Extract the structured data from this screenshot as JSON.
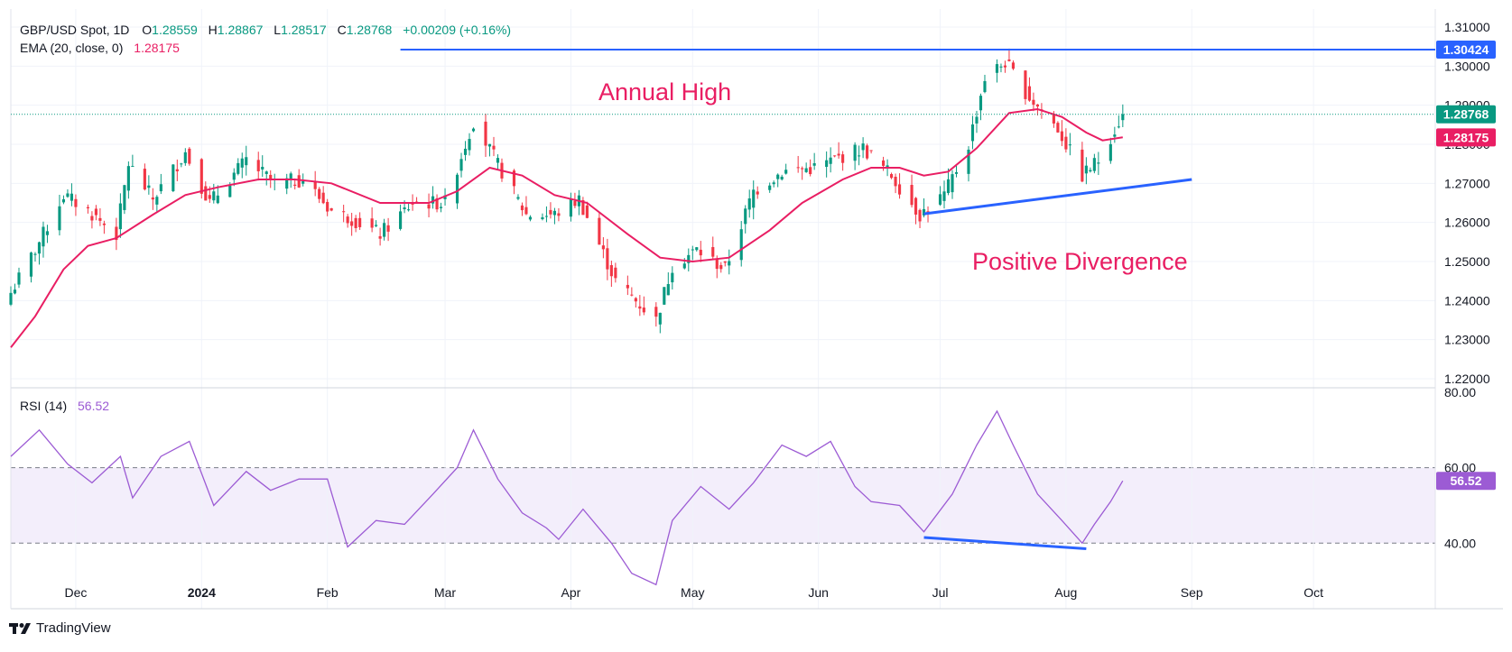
{
  "header": {
    "symbol": "GBP/USD Spot, 1D",
    "open_label": "O",
    "open": "1.28559",
    "high_label": "H",
    "high": "1.28867",
    "low_label": "L",
    "low": "1.28517",
    "close_label": "C",
    "close": "1.28768",
    "change": "+0.00209 (+0.16%)",
    "ema_label": "EMA (20, close, 0)",
    "ema_value": "1.28175",
    "rsi_label": "RSI (14)",
    "rsi_value": "56.52"
  },
  "annotations": {
    "annual_high": "Annual High",
    "positive_divergence": "Positive Divergence"
  },
  "price_badges": {
    "resistance": "1.30424",
    "last": "1.28768",
    "ema": "1.28175",
    "rsi": "56.52"
  },
  "colors": {
    "up": "#089981",
    "down": "#f23645",
    "ema": "#e91e63",
    "rsi": "#9c5bd4",
    "trendline": "#2962ff",
    "annotation": "#e91e63",
    "rsi_band": "#f3eefb"
  },
  "footer": {
    "brand": "TradingView"
  },
  "chart_data": [
    {
      "type": "candlestick",
      "series_name": "GBP/USD Spot, 1D",
      "x_tick_labels": [
        "Dec",
        "2024",
        "Feb",
        "Mar",
        "Apr",
        "May",
        "Jun",
        "Jul",
        "Aug",
        "Sep",
        "Oct"
      ],
      "x_tick_dates": [
        "2023-12-01",
        "2024-01-01",
        "2024-02-01",
        "2024-03-01",
        "2024-04-01",
        "2024-05-01",
        "2024-06-01",
        "2024-07-01",
        "2024-08-01",
        "2024-09-01",
        "2024-10-01"
      ],
      "y_ticks": [
        "1.22000",
        "1.23000",
        "1.24000",
        "1.25000",
        "1.26000",
        "1.27000",
        "1.28000",
        "1.29000",
        "1.30000",
        "1.31000"
      ],
      "ylim": [
        1.22,
        1.31
      ],
      "xlim": [
        "2023-11-15",
        "2024-10-31"
      ],
      "close_path": [
        [
          "2023-11-15",
          1.242
        ],
        [
          "2023-11-21",
          1.253
        ],
        [
          "2023-11-28",
          1.267
        ],
        [
          "2023-12-04",
          1.263
        ],
        [
          "2023-12-11",
          1.257
        ],
        [
          "2023-12-14",
          1.275
        ],
        [
          "2023-12-20",
          1.266
        ],
        [
          "2023-12-28",
          1.278
        ],
        [
          "2024-01-03",
          1.265
        ],
        [
          "2024-01-12",
          1.276
        ],
        [
          "2024-01-19",
          1.27
        ],
        [
          "2024-01-26",
          1.271
        ],
        [
          "2024-02-02",
          1.263
        ],
        [
          "2024-02-07",
          1.261
        ],
        [
          "2024-02-14",
          1.257
        ],
        [
          "2024-02-22",
          1.265
        ],
        [
          "2024-03-01",
          1.265
        ],
        [
          "2024-03-08",
          1.286
        ],
        [
          "2024-03-15",
          1.273
        ],
        [
          "2024-03-21",
          1.262
        ],
        [
          "2024-03-28",
          1.262
        ],
        [
          "2024-04-03",
          1.266
        ],
        [
          "2024-04-12",
          1.245
        ],
        [
          "2024-04-22",
          1.235
        ],
        [
          "2024-04-26",
          1.249
        ],
        [
          "2024-05-02",
          1.253
        ],
        [
          "2024-05-09",
          1.248
        ],
        [
          "2024-05-16",
          1.268
        ],
        [
          "2024-05-23",
          1.273
        ],
        [
          "2024-05-31",
          1.274
        ],
        [
          "2024-06-07",
          1.277
        ],
        [
          "2024-06-12",
          1.279
        ],
        [
          "2024-06-19",
          1.272
        ],
        [
          "2024-06-26",
          1.262
        ],
        [
          "2024-07-02",
          1.267
        ],
        [
          "2024-07-08",
          1.28
        ],
        [
          "2024-07-12",
          1.297
        ],
        [
          "2024-07-17",
          1.301
        ],
        [
          "2024-07-23",
          1.292
        ],
        [
          "2024-07-30",
          1.284
        ],
        [
          "2024-08-05",
          1.272
        ],
        [
          "2024-08-09",
          1.276
        ],
        [
          "2024-08-12",
          1.282
        ],
        [
          "2024-08-15",
          1.2877
        ]
      ],
      "ema_20": [
        [
          "2023-11-15",
          1.228
        ],
        [
          "2023-11-21",
          1.236
        ],
        [
          "2023-11-28",
          1.248
        ],
        [
          "2023-12-04",
          1.254
        ],
        [
          "2023-12-11",
          1.256
        ],
        [
          "2023-12-20",
          1.262
        ],
        [
          "2023-12-28",
          1.267
        ],
        [
          "2024-01-05",
          1.269
        ],
        [
          "2024-01-15",
          1.271
        ],
        [
          "2024-01-24",
          1.271
        ],
        [
          "2024-02-02",
          1.27
        ],
        [
          "2024-02-14",
          1.265
        ],
        [
          "2024-02-26",
          1.265
        ],
        [
          "2024-03-04",
          1.268
        ],
        [
          "2024-03-12",
          1.274
        ],
        [
          "2024-03-20",
          1.272
        ],
        [
          "2024-03-28",
          1.267
        ],
        [
          "2024-04-05",
          1.265
        ],
        [
          "2024-04-15",
          1.257
        ],
        [
          "2024-04-23",
          1.251
        ],
        [
          "2024-05-01",
          1.25
        ],
        [
          "2024-05-10",
          1.251
        ],
        [
          "2024-05-20",
          1.258
        ],
        [
          "2024-05-28",
          1.265
        ],
        [
          "2024-06-07",
          1.271
        ],
        [
          "2024-06-14",
          1.274
        ],
        [
          "2024-06-21",
          1.274
        ],
        [
          "2024-06-27",
          1.272
        ],
        [
          "2024-07-03",
          1.273
        ],
        [
          "2024-07-10",
          1.279
        ],
        [
          "2024-07-18",
          1.288
        ],
        [
          "2024-07-25",
          1.289
        ],
        [
          "2024-07-31",
          1.287
        ],
        [
          "2024-08-06",
          1.283
        ],
        [
          "2024-08-10",
          1.281
        ],
        [
          "2024-08-15",
          1.2818
        ]
      ],
      "annual_high_level": 1.30424,
      "last_close": 1.28768,
      "marked_high_date": "2024-07-17",
      "marked_high_value": 1.3043,
      "marked_low_date": "2024-04-22",
      "marked_low_value": 1.23,
      "trendline": [
        [
          "2024-06-27",
          1.2622
        ],
        [
          "2024-09-01",
          1.271
        ]
      ]
    },
    {
      "type": "line",
      "series_name": "RSI (14)",
      "y_ticks": [
        "40.00",
        "60.00",
        "80.00"
      ],
      "ylim": [
        25,
        80
      ],
      "band": [
        40,
        60
      ],
      "values": [
        [
          "2023-11-15",
          63
        ],
        [
          "2023-11-22",
          70
        ],
        [
          "2023-11-29",
          61
        ],
        [
          "2023-12-05",
          56
        ],
        [
          "2023-12-12",
          63
        ],
        [
          "2023-12-15",
          52
        ],
        [
          "2023-12-22",
          63
        ],
        [
          "2023-12-29",
          67
        ],
        [
          "2024-01-04",
          50
        ],
        [
          "2024-01-12",
          59
        ],
        [
          "2024-01-18",
          54
        ],
        [
          "2024-01-25",
          57
        ],
        [
          "2024-02-01",
          57
        ],
        [
          "2024-02-06",
          39
        ],
        [
          "2024-02-13",
          46
        ],
        [
          "2024-02-20",
          45
        ],
        [
          "2024-02-27",
          53
        ],
        [
          "2024-03-04",
          60
        ],
        [
          "2024-03-08",
          70
        ],
        [
          "2024-03-14",
          57
        ],
        [
          "2024-03-20",
          48
        ],
        [
          "2024-03-26",
          44
        ],
        [
          "2024-03-29",
          41
        ],
        [
          "2024-04-04",
          49
        ],
        [
          "2024-04-11",
          40
        ],
        [
          "2024-04-16",
          32
        ],
        [
          "2024-04-22",
          29
        ],
        [
          "2024-04-26",
          46
        ],
        [
          "2024-05-03",
          55
        ],
        [
          "2024-05-10",
          49
        ],
        [
          "2024-05-16",
          56
        ],
        [
          "2024-05-23",
          66
        ],
        [
          "2024-05-29",
          63
        ],
        [
          "2024-06-04",
          67
        ],
        [
          "2024-06-10",
          55
        ],
        [
          "2024-06-14",
          51
        ],
        [
          "2024-06-21",
          50
        ],
        [
          "2024-06-27",
          43
        ],
        [
          "2024-07-04",
          53
        ],
        [
          "2024-07-10",
          66
        ],
        [
          "2024-07-15",
          75
        ],
        [
          "2024-07-19",
          66
        ],
        [
          "2024-07-25",
          53
        ],
        [
          "2024-07-31",
          46
        ],
        [
          "2024-08-05",
          40
        ],
        [
          "2024-08-08",
          45
        ],
        [
          "2024-08-12",
          51
        ],
        [
          "2024-08-15",
          56.52
        ]
      ],
      "divergence_line": [
        [
          "2024-06-27",
          41.5
        ],
        [
          "2024-08-06",
          38.5
        ]
      ]
    }
  ]
}
